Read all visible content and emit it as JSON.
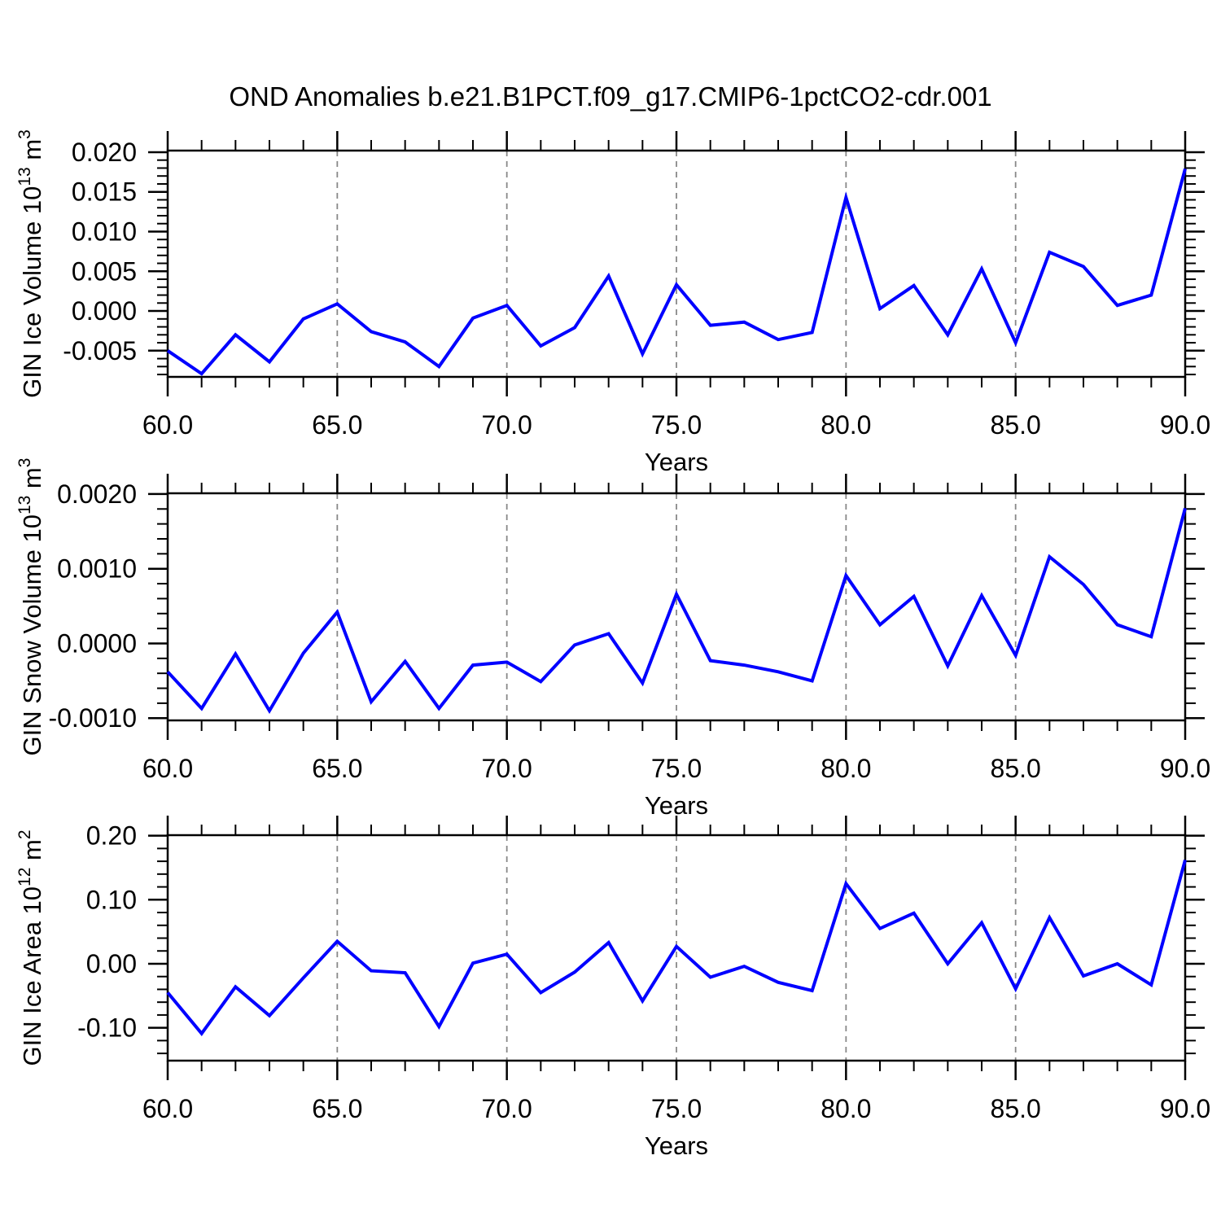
{
  "title": "OND Anomalies b.e21.B1PCT.f09_g17.CMIP6-1pctCO2-cdr.001",
  "colors": {
    "line": "#0000ff",
    "frame": "#000000",
    "grid": "#888888",
    "background": "#ffffff"
  },
  "chart_data": [
    {
      "type": "line",
      "title": "OND Anomalies b.e21.B1PCT.f09_g17.CMIP6-1pctCO2-cdr.001",
      "ylabel": "GIN Ice Volume 10^13 m^3",
      "ylabel_parts": [
        [
          "GIN Ice Volume 10",
          0
        ],
        [
          "13",
          1
        ],
        [
          " m",
          0
        ],
        [
          "3",
          1
        ]
      ],
      "xlabel": "Years",
      "x": [
        60,
        61,
        62,
        63,
        64,
        65,
        66,
        67,
        68,
        69,
        70,
        71,
        72,
        73,
        74,
        75,
        76,
        77,
        78,
        79,
        80,
        81,
        82,
        83,
        84,
        85,
        86,
        87,
        88,
        89,
        90
      ],
      "values": [
        -0.005,
        -0.0079,
        -0.003,
        -0.0064,
        -0.001,
        0.0009,
        -0.0026,
        -0.0039,
        -0.007,
        -0.0009,
        0.0007,
        -0.0044,
        -0.0021,
        0.0044,
        -0.0054,
        0.0033,
        -0.0018,
        -0.0014,
        -0.0036,
        -0.0027,
        0.0143,
        0.0003,
        0.0032,
        -0.003,
        0.0053,
        -0.004,
        0.0074,
        0.0056,
        0.0007,
        0.002,
        0.0179
      ],
      "xlim": [
        60,
        90
      ],
      "ylim": [
        -0.0083,
        0.0202
      ],
      "xticks": [
        60,
        65,
        70,
        75,
        80,
        85,
        90
      ],
      "xtick_labels": [
        "60.0",
        "65.0",
        "70.0",
        "75.0",
        "80.0",
        "85.0",
        "90.0"
      ],
      "yticks": [
        -0.005,
        0,
        0.005,
        0.01,
        0.015,
        0.02
      ],
      "ytick_labels": [
        "-0.005",
        "0.000",
        "0.005",
        "0.010",
        "0.015",
        "0.020"
      ],
      "minor_x_step": 1,
      "minor_y_step": 0.001,
      "grid_x": [
        65,
        70,
        75,
        80,
        85
      ],
      "legend": "none",
      "grid": "dashed vertical only"
    },
    {
      "type": "line",
      "title": "",
      "ylabel": "GIN Snow Volume 10^13 m^3",
      "ylabel_parts": [
        [
          "GIN Snow Volume 10",
          0
        ],
        [
          "13",
          1
        ],
        [
          " m",
          0
        ],
        [
          "3",
          1
        ]
      ],
      "xlabel": "Years",
      "x": [
        60,
        61,
        62,
        63,
        64,
        65,
        66,
        67,
        68,
        69,
        70,
        71,
        72,
        73,
        74,
        75,
        76,
        77,
        78,
        79,
        80,
        81,
        82,
        83,
        84,
        85,
        86,
        87,
        88,
        89,
        90
      ],
      "values": [
        -0.00038,
        -0.00087,
        -0.00014,
        -0.0009,
        -0.00013,
        0.00042,
        -0.00078,
        -0.00024,
        -0.00087,
        -0.00029,
        -0.00025,
        -0.00051,
        -2e-05,
        0.00013,
        -0.00053,
        0.00066,
        -0.00023,
        -0.00029,
        -0.00038,
        -0.0005,
        0.00091,
        0.00025,
        0.00063,
        -0.0003,
        0.00064,
        -0.00016,
        0.00116,
        0.00079,
        0.00025,
        9e-05,
        0.00181
      ],
      "xlim": [
        60,
        90
      ],
      "ylim": [
        -0.00103,
        0.00201
      ],
      "xticks": [
        60,
        65,
        70,
        75,
        80,
        85,
        90
      ],
      "xtick_labels": [
        "60.0",
        "65.0",
        "70.0",
        "75.0",
        "80.0",
        "85.0",
        "90.0"
      ],
      "yticks": [
        -0.001,
        0,
        0.001,
        0.002
      ],
      "ytick_labels": [
        "-0.0010",
        "0.0000",
        "0.0010",
        "0.0020"
      ],
      "minor_x_step": 1,
      "minor_y_step": 0.0002,
      "grid_x": [
        65,
        70,
        75,
        80,
        85
      ],
      "legend": "none",
      "grid": "dashed vertical only"
    },
    {
      "type": "line",
      "title": "",
      "ylabel": "GIN Ice Area 10^12 m^2",
      "ylabel_parts": [
        [
          "GIN Ice Area 10",
          0
        ],
        [
          "12",
          1
        ],
        [
          " m",
          0
        ],
        [
          "2",
          1
        ]
      ],
      "xlabel": "Years",
      "x": [
        60,
        61,
        62,
        63,
        64,
        65,
        66,
        67,
        68,
        69,
        70,
        71,
        72,
        73,
        74,
        75,
        76,
        77,
        78,
        79,
        80,
        81,
        82,
        83,
        84,
        85,
        86,
        87,
        88,
        89,
        90
      ],
      "values": [
        -0.045,
        -0.109,
        -0.036,
        -0.081,
        -0.022,
        0.035,
        -0.011,
        -0.014,
        -0.098,
        0.001,
        0.015,
        -0.045,
        -0.013,
        0.033,
        -0.058,
        0.027,
        -0.021,
        -0.004,
        -0.029,
        -0.042,
        0.125,
        0.055,
        0.079,
        0.0,
        0.064,
        -0.039,
        0.072,
        -0.019,
        0.0,
        -0.033,
        0.162
      ],
      "xlim": [
        60,
        90
      ],
      "ylim": [
        -0.1513,
        0.2008
      ],
      "xticks": [
        60,
        65,
        70,
        75,
        80,
        85,
        90
      ],
      "xtick_labels": [
        "60.0",
        "65.0",
        "70.0",
        "75.0",
        "80.0",
        "85.0",
        "90.0"
      ],
      "yticks": [
        -0.1,
        0,
        0.1,
        0.2
      ],
      "ytick_labels": [
        "-0.10",
        "0.00",
        "0.10",
        "0.20"
      ],
      "minor_x_step": 1,
      "minor_y_step": 0.02,
      "grid_x": [
        65,
        70,
        75,
        80,
        85
      ],
      "legend": "none",
      "grid": "dashed vertical only"
    }
  ]
}
